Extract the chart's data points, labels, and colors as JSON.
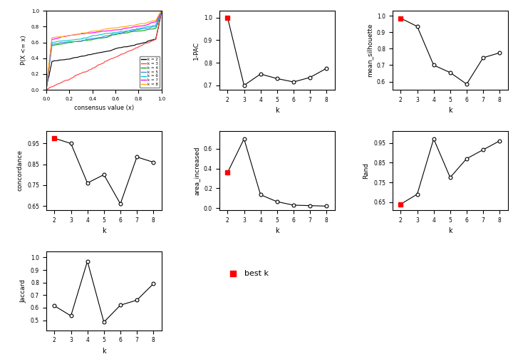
{
  "k_values": [
    2,
    3,
    4,
    5,
    6,
    7,
    8
  ],
  "pac_1minus": [
    1.0,
    0.7,
    0.75,
    0.73,
    0.715,
    0.735,
    0.775
  ],
  "pac_best_idx": 0,
  "mean_silhouette": [
    0.985,
    0.935,
    0.7,
    0.655,
    0.585,
    0.745,
    0.775
  ],
  "sil_best_idx": 0,
  "concordance_vals": [
    0.975,
    0.95,
    0.76,
    0.8,
    0.66,
    0.885,
    0.86
  ],
  "conc_best_idx": 0,
  "area_inc_vals": [
    0.36,
    0.7,
    0.135,
    0.065,
    0.03,
    0.025,
    0.02
  ],
  "area_best_idx": 0,
  "rand_vals": [
    0.64,
    0.69,
    0.97,
    0.775,
    0.87,
    0.915,
    0.96
  ],
  "rand_best_idx": 0,
  "jaccard": [
    0.615,
    0.535,
    0.97,
    0.485,
    0.62,
    0.66,
    0.79
  ],
  "colors_ecdf": [
    "#000000",
    "#FF4444",
    "#00AA00",
    "#4488FF",
    "#00CCCC",
    "#FF00FF",
    "#FFAA00"
  ],
  "labels_ecdf": [
    "k = 2",
    "k = 3",
    "k = 4",
    "k = 5",
    "k = 6",
    "k = 7",
    "k = 8"
  ]
}
